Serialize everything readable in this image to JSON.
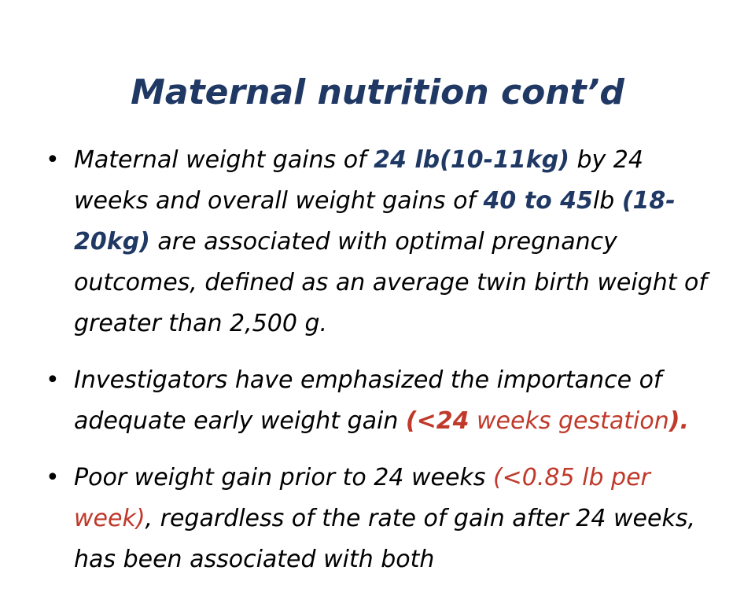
{
  "slide": {
    "title": "Maternal nutrition cont’d",
    "bullet_char": "•",
    "bullets": [
      {
        "segments": [
          "Maternal weight gains of ",
          "24 lb(10-11kg)",
          " by 24 weeks and overall weight gains of ",
          "40 to 45",
          "lb ",
          "(18-20kg)",
          " are associated with optimal pregnancy outcomes, defined as an average twin birth weight of greater than 2,500 g."
        ]
      },
      {
        "segments": [
          " Investigators have emphasized the importance of adequate early weight gain ",
          "(<",
          "24",
          " weeks gestation",
          ")."
        ]
      },
      {
        "segments": [
          " Poor weight gain prior to 24 weeks ",
          "(<0.85 lb per week)",
          ", regardless of the rate of gain after 24 weeks, has been associated with both"
        ]
      }
    ]
  },
  "colors": {
    "title": "#1f3864",
    "highlight_blue": "#1f3864",
    "highlight_red": "#c0392b",
    "text": "#000000",
    "background": "#ffffff"
  }
}
